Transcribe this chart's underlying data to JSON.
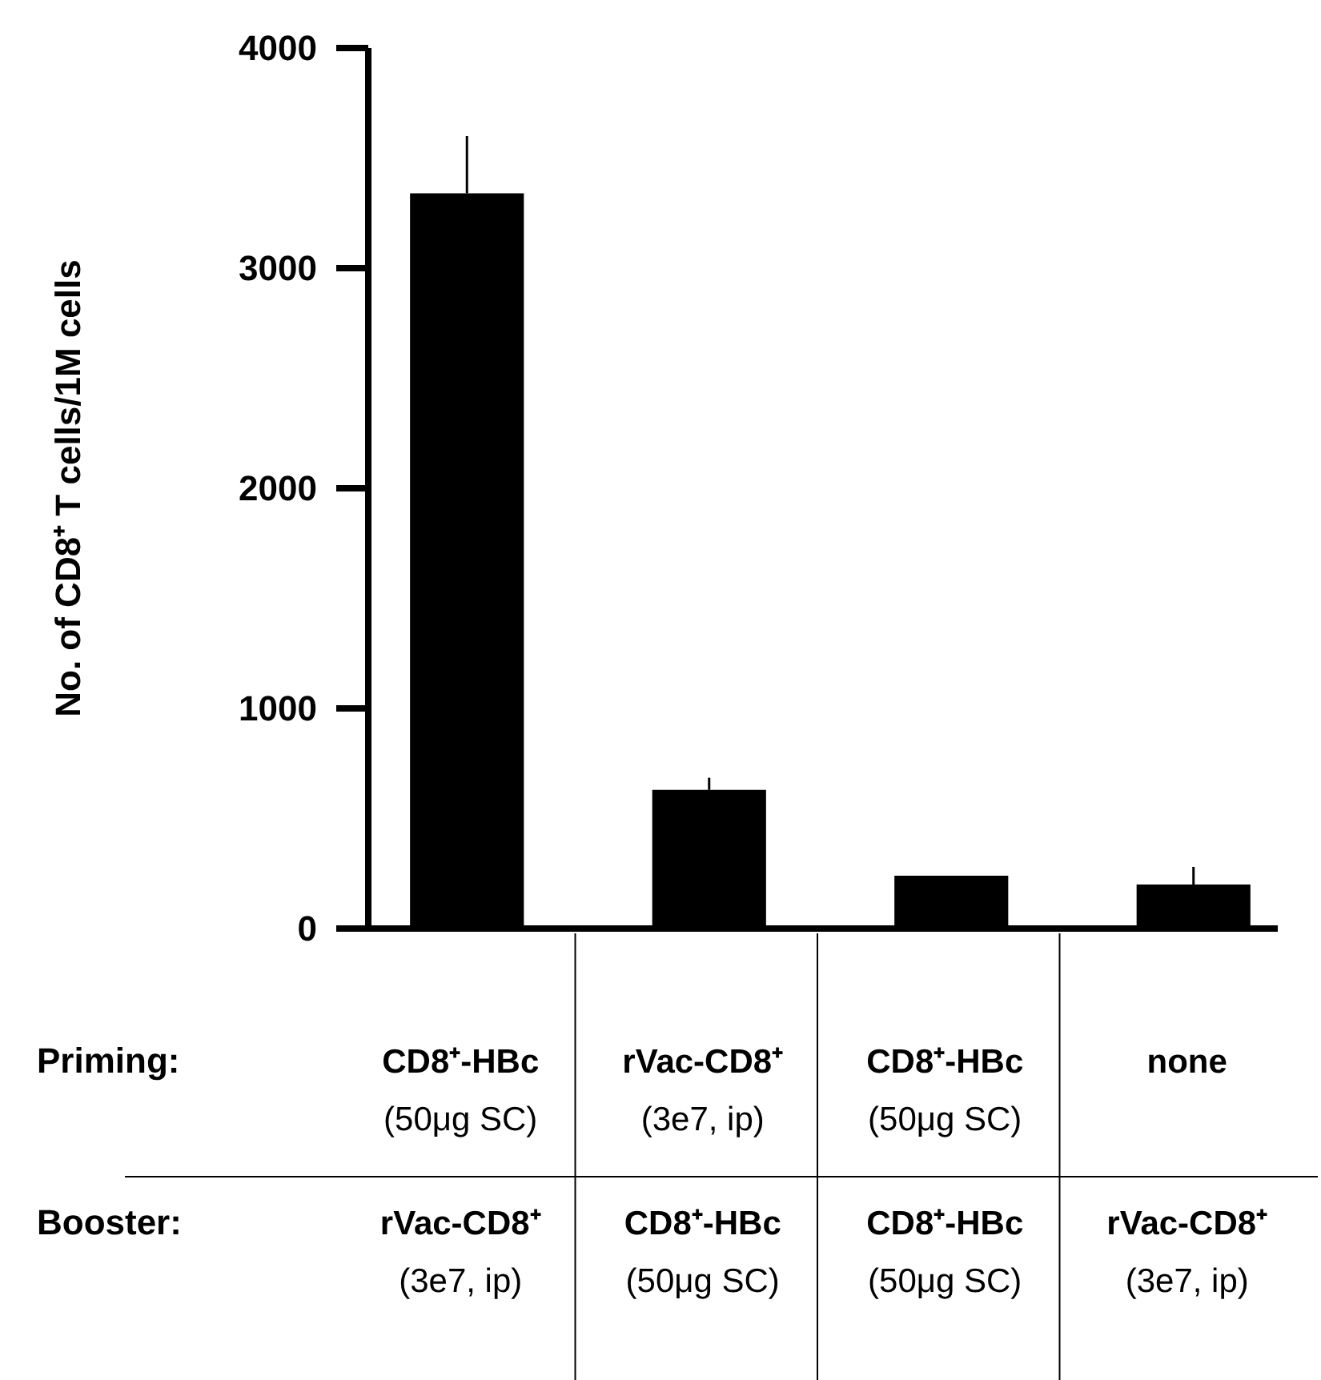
{
  "chart_data": {
    "type": "bar",
    "ylabel": "No. of CD8⁺ T cells/1M cells",
    "categories": [
      null,
      null,
      null,
      null
    ],
    "values": [
      3340,
      630,
      240,
      200
    ],
    "errors": [
      260,
      55,
      null,
      80
    ],
    "color": "#000000",
    "ylim": [
      0,
      4000
    ],
    "yticks": [
      0,
      1000,
      2000,
      3000,
      4000
    ],
    "grid": false,
    "annotations": [
      "Priming:",
      "CD8⁺-HBc\n(50μg SC)",
      "rVac-CD8⁺\n(3e7, ip)",
      "CD8⁺-HBc\n(50μg SC)",
      "none",
      "Booster:",
      "rVac-CD8⁺\n(3e7, ip)",
      "CD8⁺-HBc\n(50μg SC)",
      "CD8⁺-HBc\n(50μg SC)",
      "rVac-CD8⁺\n(3e7, ip)"
    ]
  }
}
